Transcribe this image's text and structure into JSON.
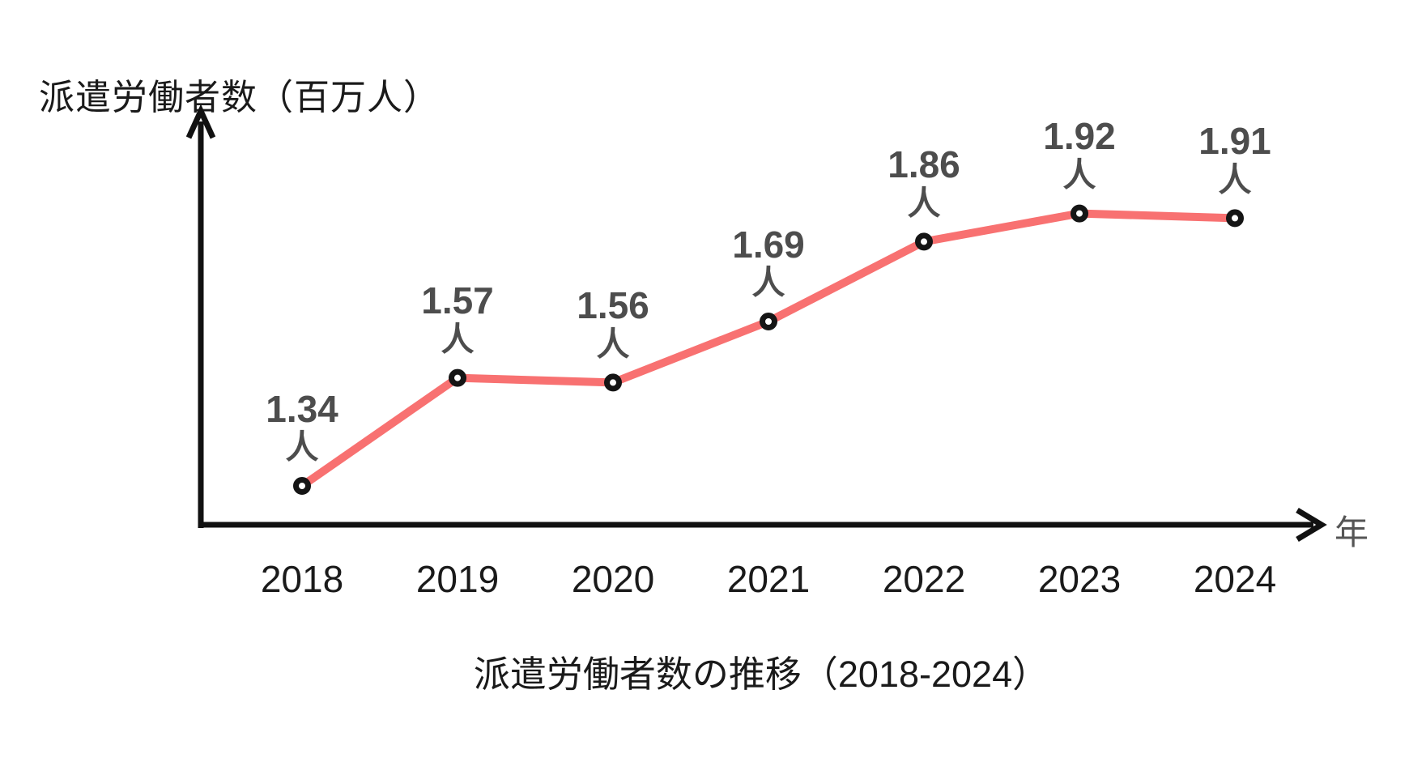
{
  "chart_data": {
    "type": "line",
    "title": "派遣労働者数の推移（2018-2024）",
    "y_axis_label": "派遣労働者数（百万人）",
    "x_axis_label": "年",
    "categories": [
      "2018",
      "2019",
      "2020",
      "2021",
      "2022",
      "2023",
      "2024"
    ],
    "series": [
      {
        "name": "派遣労働者数",
        "values": [
          1.34,
          1.57,
          1.56,
          1.69,
          1.86,
          1.92,
          1.91
        ]
      }
    ],
    "data_labels": [
      "1.34",
      "1.57",
      "1.56",
      "1.69",
      "1.86",
      "1.92",
      "1.91"
    ],
    "data_label_unit": "人",
    "ylim": [
      1.25,
      2.05
    ],
    "grid": false,
    "legend": false,
    "colors": {
      "line": "#F87171",
      "marker_fill": "#FFFFFF",
      "marker_stroke": "#151515",
      "axis": "#111111",
      "data_label": "#4D4D4D",
      "tick_label": "#1A1A1A",
      "x_axis_title": "#555555"
    }
  }
}
